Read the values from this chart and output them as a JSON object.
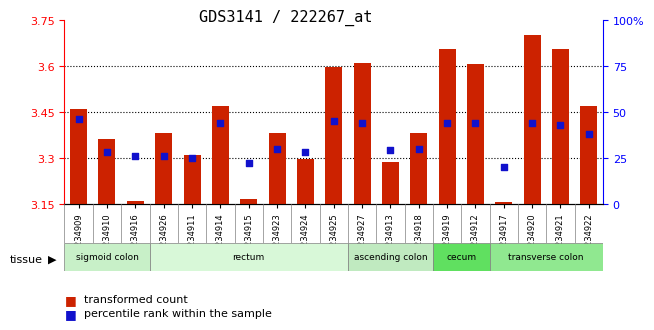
{
  "title": "GDS3141 / 222267_at",
  "samples": [
    "GSM234909",
    "GSM234910",
    "GSM234916",
    "GSM234926",
    "GSM234911",
    "GSM234914",
    "GSM234915",
    "GSM234923",
    "GSM234924",
    "GSM234925",
    "GSM234927",
    "GSM234913",
    "GSM234918",
    "GSM234919",
    "GSM234912",
    "GSM234917",
    "GSM234920",
    "GSM234921",
    "GSM234922"
  ],
  "bar_heights": [
    3.46,
    3.36,
    3.16,
    3.38,
    3.31,
    3.47,
    3.165,
    3.38,
    3.295,
    3.595,
    3.61,
    3.285,
    3.38,
    3.655,
    3.605,
    3.155,
    3.7,
    3.655,
    3.47
  ],
  "percentile_ranks": [
    46,
    28,
    26,
    26,
    25,
    44,
    22,
    30,
    28,
    45,
    44,
    29,
    30,
    44,
    44,
    20,
    44,
    43,
    38
  ],
  "y_min": 3.15,
  "y_max": 3.75,
  "y_ticks_left": [
    3.15,
    3.3,
    3.45,
    3.6,
    3.75
  ],
  "y_ticks_right": [
    0,
    25,
    50,
    75,
    100
  ],
  "grid_lines": [
    3.3,
    3.45,
    3.6
  ],
  "bar_color": "#cc2200",
  "blue_color": "#1111cc",
  "tissue_groups": [
    {
      "label": "sigmoid colon",
      "start": 0,
      "end": 3,
      "color": "#c8f0c8"
    },
    {
      "label": "rectum",
      "start": 3,
      "end": 10,
      "color": "#d8f8d8"
    },
    {
      "label": "ascending colon",
      "start": 10,
      "end": 13,
      "color": "#c0eac0"
    },
    {
      "label": "cecum",
      "start": 13,
      "end": 15,
      "color": "#60e060"
    },
    {
      "label": "transverse colon",
      "start": 15,
      "end": 19,
      "color": "#90e890"
    }
  ],
  "tissue_label": "tissue",
  "legend_items": [
    "transformed count",
    "percentile rank within the sample"
  ],
  "xlabel_fontsize": 7,
  "title_fontsize": 11,
  "bar_width": 0.6
}
